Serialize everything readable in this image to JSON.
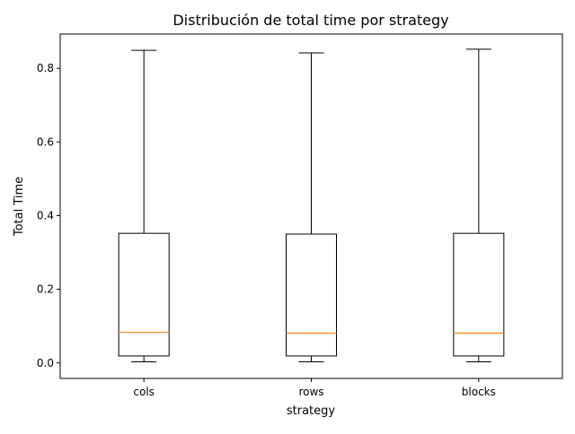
{
  "chart_data": {
    "type": "box",
    "title": "Distribución de total time por strategy",
    "xlabel": "strategy",
    "ylabel": "Total Time",
    "ylim": [
      -0.042,
      0.893
    ],
    "yticks": [
      0.0,
      0.2,
      0.4,
      0.6,
      0.8
    ],
    "ytick_labels": [
      "0.0",
      "0.2",
      "0.4",
      "0.6",
      "0.8"
    ],
    "categories": [
      "cols",
      "rows",
      "blocks"
    ],
    "boxes": [
      {
        "category": "cols",
        "whislo": 0.003,
        "q1": 0.019,
        "median": 0.083,
        "q3": 0.352,
        "whishi": 0.849
      },
      {
        "category": "rows",
        "whislo": 0.003,
        "q1": 0.019,
        "median": 0.081,
        "q3": 0.35,
        "whishi": 0.842
      },
      {
        "category": "blocks",
        "whislo": 0.003,
        "q1": 0.019,
        "median": 0.081,
        "q3": 0.352,
        "whishi": 0.852
      }
    ],
    "grid": false,
    "colors": {
      "box": "#000000",
      "median": "#ff7f0e",
      "axes": "#000000",
      "background": "#ffffff"
    }
  }
}
